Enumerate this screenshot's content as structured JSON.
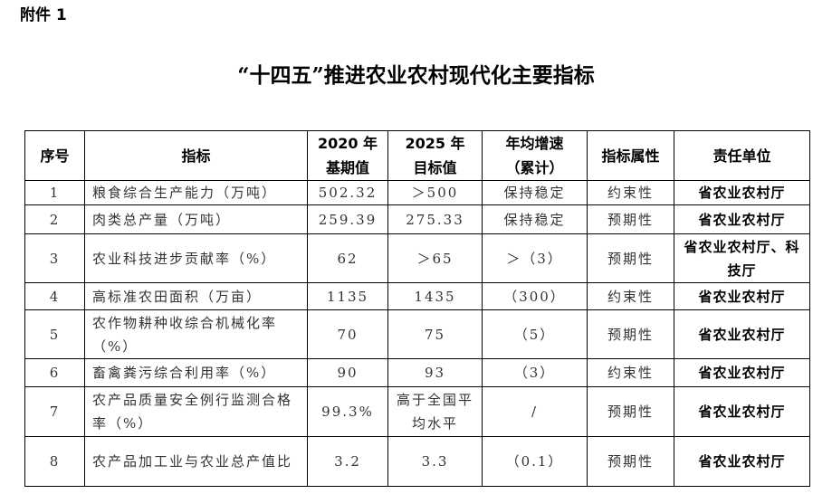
{
  "attachment_label": "附件 1",
  "title": "“十四五”推进农业农村现代化主要指标",
  "table": {
    "headers": [
      "序号",
      "指标",
      "2020 年\n基期值",
      "2025 年\n目标值",
      "年均增速\n（累计）",
      "指标属性",
      "责任单位"
    ],
    "rows": [
      {
        "no": "1",
        "indicator": "粮食综合生产能力（万吨）",
        "base_2020": "502.32",
        "target_2025": "＞500",
        "growth": "保持稳定",
        "attribute": "约束性",
        "unit": "省农业农村厅"
      },
      {
        "no": "2",
        "indicator": "肉类总产量（万吨）",
        "base_2020": "259.39",
        "target_2025": "275.33",
        "growth": "保持稳定",
        "attribute": "预期性",
        "unit": "省农业农村厅"
      },
      {
        "no": "3",
        "indicator": "农业科技进步贡献率（%）",
        "base_2020": "62",
        "target_2025": "＞65",
        "growth": "＞（3）",
        "attribute": "预期性",
        "unit": "省农业农村厅、科技厅"
      },
      {
        "no": "4",
        "indicator": "高标准农田面积（万亩）",
        "base_2020": "1135",
        "target_2025": "1435",
        "growth": "（300）",
        "attribute": "约束性",
        "unit": "省农业农村厅"
      },
      {
        "no": "5",
        "indicator": "农作物耕种收综合机械化率（%）",
        "base_2020": "70",
        "target_2025": "75",
        "growth": "（5）",
        "attribute": "预期性",
        "unit": "省农业农村厅"
      },
      {
        "no": "6",
        "indicator": "畜禽粪污综合利用率（%）",
        "base_2020": "90",
        "target_2025": "93",
        "growth": "（3）",
        "attribute": "约束性",
        "unit": "省农业农村厅"
      },
      {
        "no": "7",
        "indicator": "农产品质量安全例行监测合格率（%）",
        "base_2020": "99.3%",
        "target_2025": "高于全国平均水平",
        "growth": "/",
        "attribute": "预期性",
        "unit": "省农业农村厅"
      },
      {
        "no": "8",
        "indicator": "农产品加工业与农业总产值比",
        "base_2020": "3.2",
        "target_2025": "3.3",
        "growth": "（0.1）",
        "attribute": "预期性",
        "unit": "省农业农村厅"
      }
    ]
  }
}
